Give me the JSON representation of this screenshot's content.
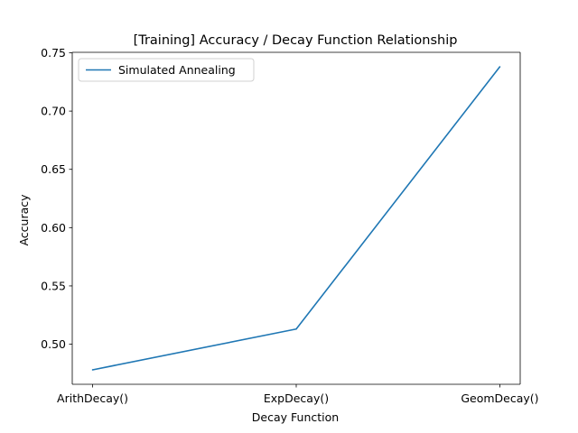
{
  "chart_data": {
    "type": "line",
    "title": "[Training] Accuracy / Decay Function Relationship",
    "xlabel": "Decay Function",
    "ylabel": "Accuracy",
    "categories": [
      "ArithDecay()",
      "ExpDecay()",
      "GeomDecay()"
    ],
    "series": [
      {
        "name": "Simulated Annealing",
        "values": [
          0.478,
          0.513,
          0.738
        ]
      }
    ],
    "ylim": [
      0.4656,
      0.7504
    ],
    "yticks": [
      0.5,
      0.55,
      0.6,
      0.65,
      0.7,
      0.75
    ],
    "ytick_labels": [
      "0.50",
      "0.55",
      "0.60",
      "0.65",
      "0.70",
      "0.75"
    ],
    "grid": false,
    "legend": "top-left",
    "colors": {
      "series": "#1f77b4",
      "axes": "#000000",
      "background": "#ffffff"
    }
  }
}
